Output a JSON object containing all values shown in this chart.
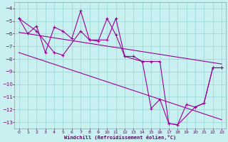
{
  "xlabel": "Windchill (Refroidissement éolien,°C)",
  "bg_color": "#c8f0f0",
  "grid_color": "#a0d8d8",
  "line_color": "#990099",
  "xlim": [
    -0.5,
    23.5
  ],
  "ylim": [
    -13.5,
    -3.5
  ],
  "yticks": [
    -13,
    -12,
    -11,
    -10,
    -9,
    -8,
    -7,
    -6,
    -5,
    -4
  ],
  "xticks": [
    0,
    1,
    2,
    3,
    4,
    5,
    6,
    7,
    8,
    9,
    10,
    11,
    12,
    13,
    14,
    15,
    16,
    17,
    18,
    19,
    20,
    21,
    22,
    23
  ],
  "series1_x": [
    0,
    1,
    2,
    3,
    4,
    5,
    6,
    7,
    8,
    9,
    10,
    11,
    12,
    13,
    14,
    15,
    16,
    17,
    18,
    19,
    20,
    21,
    22,
    23
  ],
  "series1_y": [
    -4.8,
    -6.0,
    -5.4,
    -7.5,
    -5.5,
    -5.8,
    -6.4,
    -4.2,
    -6.5,
    -6.6,
    -4.8,
    -6.1,
    -7.8,
    -7.8,
    -8.2,
    -11.9,
    -11.2,
    -13.1,
    -13.2,
    -11.6,
    -11.8,
    -11.5,
    -8.7,
    -8.7
  ],
  "series2_x": [
    0,
    2,
    4,
    5,
    7,
    8,
    10,
    11,
    12,
    14,
    15,
    16,
    17,
    18,
    20,
    21,
    22,
    23
  ],
  "series2_y": [
    -4.8,
    -5.8,
    -7.5,
    -7.7,
    -5.8,
    -6.5,
    -6.5,
    -4.8,
    -7.8,
    -8.2,
    -8.2,
    -8.2,
    -13.1,
    -13.2,
    -11.8,
    -11.5,
    -8.7,
    -8.7
  ],
  "trend1_x": [
    0,
    23
  ],
  "trend1_y": [
    -5.9,
    -8.4
  ],
  "trend2_x": [
    0,
    23
  ],
  "trend2_y": [
    -7.5,
    -12.8
  ]
}
